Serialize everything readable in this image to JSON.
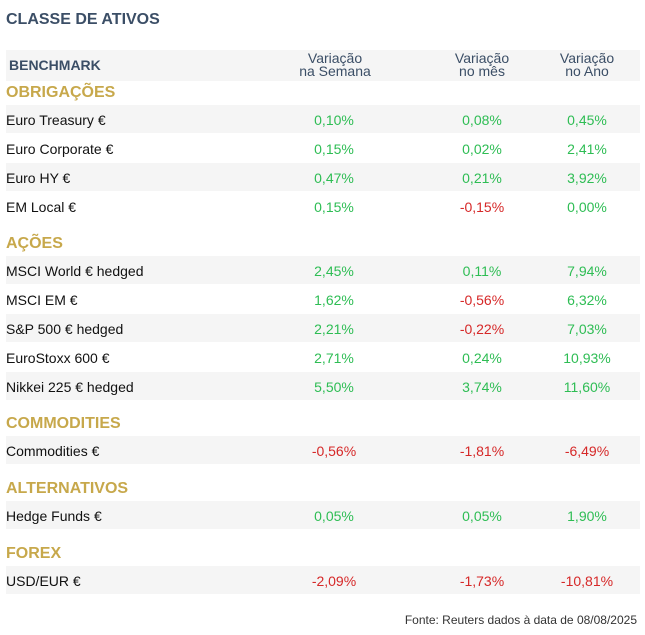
{
  "title": "CLASSE DE ATIVOS",
  "header": {
    "benchmark": "BENCHMARK",
    "col_week_1": "Variação",
    "col_week_2": "na Semana",
    "col_month_1": "Variação",
    "col_month_2": "no mês",
    "col_year_1": "Variação",
    "col_year_2": "no Ano"
  },
  "sections": [
    {
      "name": "OBRIGAÇÕES",
      "rows": [
        {
          "label": "Euro Treasury €",
          "week": "0,10%",
          "month": "0,08%",
          "year": "0,45%"
        },
        {
          "label": "Euro Corporate €",
          "week": "0,15%",
          "month": "0,02%",
          "year": "2,41%"
        },
        {
          "label": "Euro HY €",
          "week": "0,47%",
          "month": "0,21%",
          "year": "3,92%"
        },
        {
          "label": "EM Local €",
          "week": "0,15%",
          "month": "-0,15%",
          "year": "0,00%"
        }
      ]
    },
    {
      "name": "AÇÕES",
      "rows": [
        {
          "label": "MSCI World € hedged",
          "week": "2,45%",
          "month": "0,11%",
          "year": "7,94%"
        },
        {
          "label": "MSCI EM €",
          "week": "1,62%",
          "month": "-0,56%",
          "year": "6,32%"
        },
        {
          "label": "S&P 500 € hedged",
          "week": "2,21%",
          "month": "-0,22%",
          "year": "7,03%"
        },
        {
          "label": "EuroStoxx 600 €",
          "week": "2,71%",
          "month": "0,24%",
          "year": "10,93%"
        },
        {
          "label": "Nikkei 225 € hedged",
          "week": "5,50%",
          "month": "3,74%",
          "year": "11,60%"
        }
      ]
    },
    {
      "name": "COMMODITIES",
      "rows": [
        {
          "label": "Commodities €",
          "week": "-0,56%",
          "month": "-1,81%",
          "year": "-6,49%"
        }
      ]
    },
    {
      "name": "ALTERNATIVOS",
      "rows": [
        {
          "label": "Hedge Funds €",
          "week": "0,05%",
          "month": "0,05%",
          "year": "1,90%"
        }
      ]
    },
    {
      "name": "FOREX",
      "rows": [
        {
          "label": "USD/EUR €",
          "week": "-2,09%",
          "month": "-1,73%",
          "year": "-10,81%"
        }
      ]
    }
  ],
  "footer": "Fonte: Reuters dados à data de 08/08/2025",
  "colors": {
    "positive": "#2ebd54",
    "negative": "#d62828",
    "section": "#c7a84b",
    "header": "#3b4e66"
  }
}
